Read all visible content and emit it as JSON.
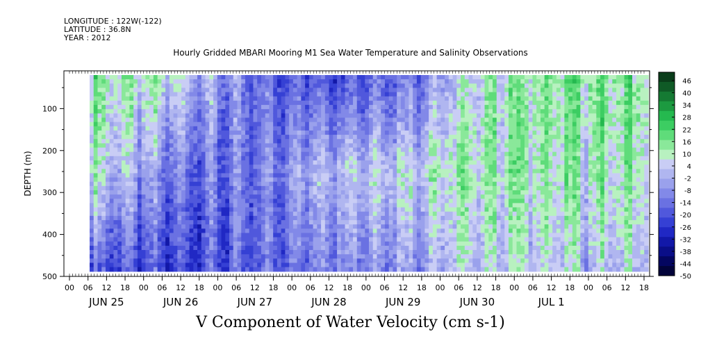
{
  "header": {
    "longitude": "LONGITUDE : 122W(-122)",
    "latitude": "LATITUDE : 36.8N",
    "year": "YEAR : 2012"
  },
  "title": "Hourly Gridded MBARI Mooring M1 Sea Water Temperature and Salinity Observations",
  "variable_label": "V Component of Water Velocity (cm s-1)",
  "chart_data": {
    "type": "heatmap",
    "title": "Hourly Gridded MBARI Mooring M1 Sea Water Temperature and Salinity Observations",
    "xlabel": "",
    "ylabel": "DEPTH (m)",
    "colorbar_label": "V Component of Water Velocity (cm s-1)",
    "y_axis": {
      "range": [
        500,
        10
      ],
      "inverted": true,
      "tick_labels": [
        "100",
        "200",
        "300",
        "400",
        "500"
      ],
      "tick_values": [
        100,
        200,
        300,
        400,
        500
      ]
    },
    "x_axis": {
      "hour_tick_labels": [
        "00",
        "06",
        "12",
        "18",
        "00",
        "06",
        "12",
        "18",
        "00",
        "06",
        "12",
        "18",
        "00",
        "06",
        "12",
        "18",
        "00",
        "06",
        "12",
        "18",
        "00",
        "06",
        "12",
        "18",
        "00",
        "06",
        "12",
        "18",
        "00",
        "06",
        "12",
        "18"
      ],
      "day_labels": [
        "JUN 25",
        "JUN 26",
        "JUN 27",
        "JUN 28",
        "JUN 29",
        "JUN 30",
        "JUL  1"
      ]
    },
    "colorbar": {
      "tick_labels": [
        "46",
        "40",
        "34",
        "28",
        "22",
        "16",
        "10",
        "4",
        "-2",
        "-8",
        "-14",
        "-20",
        "-26",
        "-32",
        "-38",
        "-44",
        "-50"
      ],
      "colors": [
        "#0a3d1a",
        "#0f5a26",
        "#157a33",
        "#1c9a40",
        "#25b94f",
        "#3ccd62",
        "#5fdc7a",
        "#8ae89a",
        "#b8f1c0",
        "#c9cdf5",
        "#b0b6f0",
        "#9aa1ec",
        "#8289e8",
        "#6a71e2",
        "#5058dc",
        "#3540d4",
        "#2028c4",
        "#1218a8",
        "#0a0e88",
        "#040660",
        "#02033a"
      ],
      "range": [
        -50,
        52
      ]
    },
    "series": [
      {
        "name": "",
        "description_values_by_day": [
          {
            "day": "JUN 25",
            "surface": 15,
            "mid": 10,
            "deep": -18
          },
          {
            "day": "JUN 26",
            "surface": 8,
            "mid": -12,
            "deep": -22
          },
          {
            "day": "JUN 27",
            "surface": -15,
            "mid": -14,
            "deep": -18
          },
          {
            "day": "JUN 28",
            "surface": -18,
            "mid": 4,
            "deep": -8
          },
          {
            "day": "JUN 29",
            "surface": -12,
            "mid": 8,
            "deep": -4
          },
          {
            "day": "JUN 30",
            "surface": 12,
            "mid": 14,
            "deep": 6
          },
          {
            "day": "JUL  1",
            "surface": 16,
            "mid": 12,
            "deep": 4
          }
        ]
      }
    ],
    "grid": false,
    "legend": "right"
  }
}
